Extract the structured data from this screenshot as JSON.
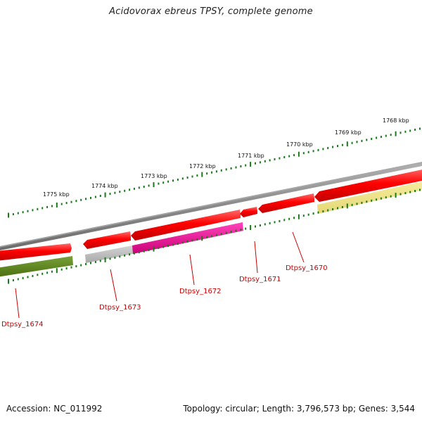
{
  "title": "Acidovorax ebreus TPSY, complete genome",
  "footer": {
    "accession": "Accession: NC_011992",
    "summary": "Topology: circular; Length: 3,796,573 bp; Genes: 3,544"
  },
  "kbp_ticks": [
    {
      "label": "1768 kbp"
    },
    {
      "label": "1769 kbp"
    },
    {
      "label": "1770 kbp"
    },
    {
      "label": "1771 kbp"
    },
    {
      "label": "1772 kbp"
    },
    {
      "label": "1773 kbp"
    },
    {
      "label": "1774 kbp"
    },
    {
      "label": "1775 kbp"
    }
  ],
  "genes": [
    {
      "name": "Dtpsy_1670"
    },
    {
      "name": "Dtpsy_1671"
    },
    {
      "name": "Dtpsy_1672"
    },
    {
      "name": "Dtpsy_1673"
    },
    {
      "name": "Dtpsy_1674"
    }
  ],
  "colors": {
    "backbone": "#808080",
    "gene_red": "#ee0000",
    "track_pink": "#ee1199",
    "track_green": "#5a8a1a",
    "track_gray": "#b8b8b8",
    "track_yellow": "#eee388",
    "tick_green": "#1a7a1a",
    "label_red": "#cc0000"
  }
}
